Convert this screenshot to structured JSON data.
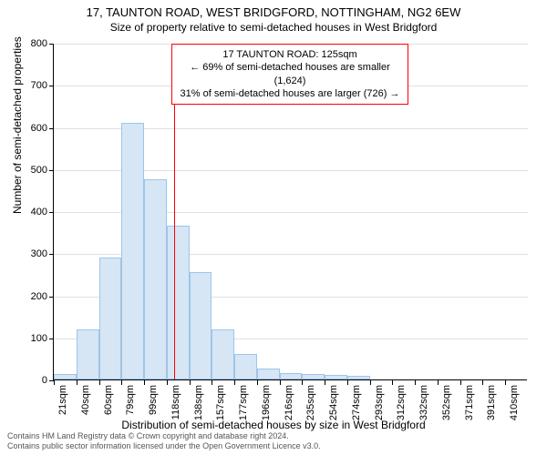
{
  "title": {
    "line1": "17, TAUNTON ROAD, WEST BRIDGFORD, NOTTINGHAM, NG2 6EW",
    "line2": "Size of property relative to semi-detached houses in West Bridgford"
  },
  "info_box": {
    "line1": "17 TAUNTON ROAD: 125sqm",
    "line2": "← 69% of semi-detached houses are smaller (1,624)",
    "line3": "31% of semi-detached houses are larger (726) →",
    "border_color": "#ff0000"
  },
  "chart": {
    "type": "histogram",
    "background_color": "#ffffff",
    "grid_color": "#e0e0e0",
    "axis_color": "#000000",
    "bar_fill": "#d6e6f5",
    "bar_border": "#9ec5e8",
    "reference_line": {
      "x": 125,
      "color": "#ff0000"
    },
    "ylim": [
      0,
      800
    ],
    "ytick_step": 100,
    "ylabel": "Number of semi-detached properties",
    "xlabel": "Distribution of semi-detached houses by size in West Bridgford",
    "bin_width_sqm": 19.5,
    "x_start": 21,
    "bins": [
      {
        "label": "21sqm",
        "value": 12
      },
      {
        "label": "40sqm",
        "value": 120
      },
      {
        "label": "60sqm",
        "value": 290
      },
      {
        "label": "79sqm",
        "value": 610
      },
      {
        "label": "99sqm",
        "value": 475
      },
      {
        "label": "118sqm",
        "value": 365
      },
      {
        "label": "138sqm",
        "value": 255
      },
      {
        "label": "157sqm",
        "value": 120
      },
      {
        "label": "177sqm",
        "value": 60
      },
      {
        "label": "196sqm",
        "value": 25
      },
      {
        "label": "216sqm",
        "value": 15
      },
      {
        "label": "235sqm",
        "value": 12
      },
      {
        "label": "254sqm",
        "value": 10
      },
      {
        "label": "274sqm",
        "value": 8
      },
      {
        "label": "293sqm",
        "value": 0
      },
      {
        "label": "312sqm",
        "value": 0
      },
      {
        "label": "332sqm",
        "value": 0
      },
      {
        "label": "352sqm",
        "value": 0
      },
      {
        "label": "371sqm",
        "value": 0
      },
      {
        "label": "391sqm",
        "value": 0
      },
      {
        "label": "410sqm",
        "value": 0
      }
    ],
    "label_fontsize": 12,
    "tick_fontsize": 11
  },
  "footer": {
    "line1": "Contains HM Land Registry data © Crown copyright and database right 2024.",
    "line2": "Contains public sector information licensed under the Open Government Licence v3.0."
  }
}
